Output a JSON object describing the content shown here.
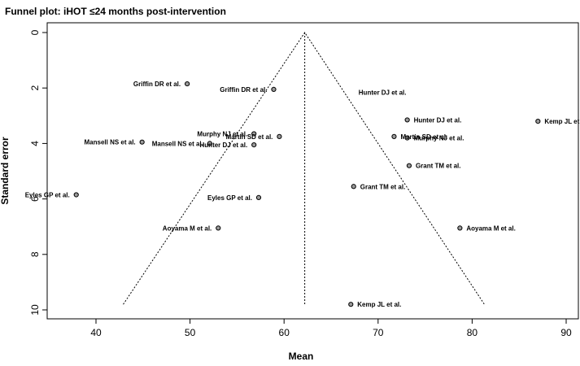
{
  "chart_data": {
    "type": "scatter",
    "title": "Funnel plot: iHOT ≤24 months post-intervention",
    "xlabel": "Mean",
    "ylabel": "Standard error",
    "xlim": [
      35,
      91
    ],
    "ylim": [
      0,
      10
    ],
    "y_reversed": true,
    "x_ticks": [
      40,
      50,
      60,
      70,
      80,
      90
    ],
    "y_ticks": [
      0,
      2,
      4,
      6,
      8,
      10
    ],
    "funnel": {
      "apex": {
        "x": 62.2,
        "y": 0
      },
      "base_left": {
        "x": 42.9,
        "y": 9.8
      },
      "base_right": {
        "x": 81.3,
        "y": 9.8
      },
      "center_line_x": 62.2
    },
    "points": [
      {
        "label": "Griffin DR et al.",
        "x": 49.7,
        "y": 1.85
      },
      {
        "label": "Griffin DR et al.",
        "x": 58.9,
        "y": 2.05
      },
      {
        "label": "Murphy NJ et al.",
        "x": 56.8,
        "y": 3.65
      },
      {
        "label": "Martin SD et al.",
        "x": 59.5,
        "y": 3.75
      },
      {
        "label": "Mansell NS et al.",
        "x": 44.9,
        "y": 3.95
      },
      {
        "label": "Mansell NS et al.",
        "x": 52.1,
        "y": 4.0
      },
      {
        "label": "Hunter DJ et al.",
        "x": 56.8,
        "y": 4.05
      },
      {
        "label": "Eyles GP et al.",
        "x": 37.9,
        "y": 5.85
      },
      {
        "label": "Eyles GP et al.",
        "x": 57.3,
        "y": 5.95
      },
      {
        "label": "Aoyama M et al.",
        "x": 53.0,
        "y": 7.05
      },
      {
        "label": "Grant TM et al.",
        "x": 67.4,
        "y": 5.55
      },
      {
        "label": "Kemp JL et al.",
        "x": 67.1,
        "y": 9.8
      },
      {
        "label": "Martin SD et al.",
        "x": 71.7,
        "y": 3.75
      },
      {
        "label": "Hunter DJ et al.",
        "x": 73.1,
        "y": 3.15
      },
      {
        "label": "Murphy NJ et al.",
        "x": 73.1,
        "y": 3.8
      },
      {
        "label": "Grant TM et al.",
        "x": 73.3,
        "y": 4.8
      },
      {
        "label": "Aoyama M et al.",
        "x": 78.7,
        "y": 7.05
      },
      {
        "label": "Kemp JL et al.",
        "x": 87.0,
        "y": 3.2
      }
    ],
    "unattached_labels": [
      {
        "label": "Hunter DJ et al.",
        "x": 73.0,
        "y": 2.15
      }
    ]
  }
}
